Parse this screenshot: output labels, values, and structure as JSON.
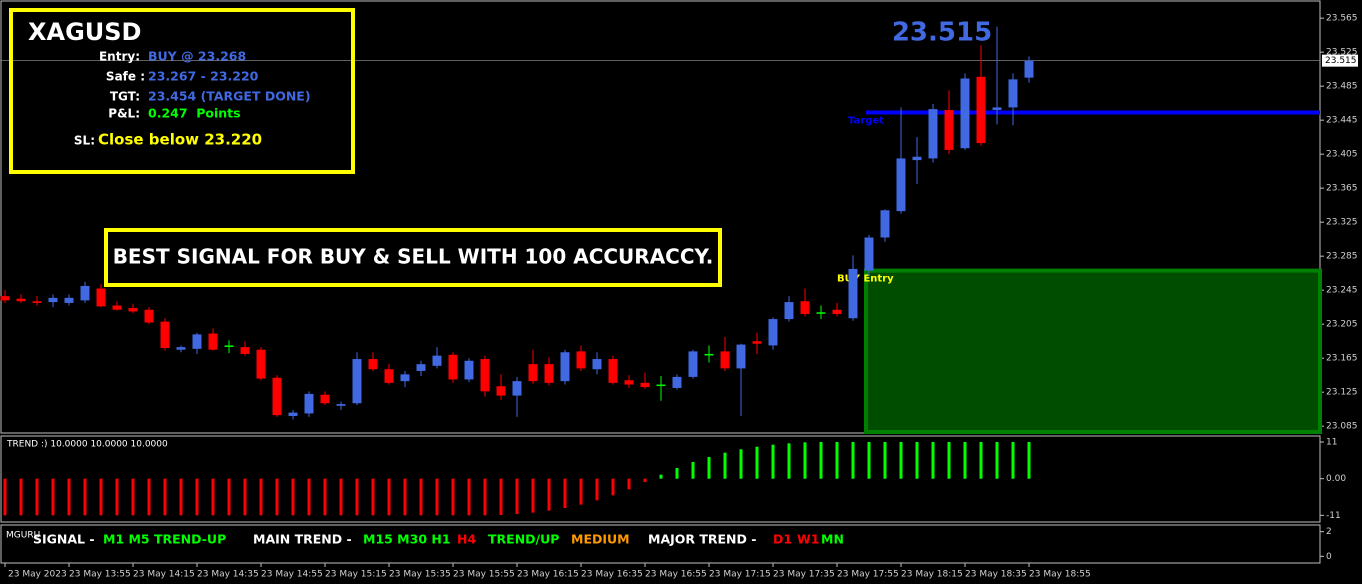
{
  "info_box": {
    "symbol": "XAGUSD",
    "rows": [
      {
        "label": "Entry:",
        "value": "BUY @ 23.268"
      },
      {
        "label": "Safe :",
        "value": "23.267 - 23.220"
      },
      {
        "label": "TGT:",
        "value": "23.454 (TARGET DONE)"
      },
      {
        "label": "P&L:",
        "value": "0.247  Points"
      }
    ],
    "sl": {
      "label": "SL:",
      "value": "Close below 23.220"
    }
  },
  "banner": "BEST SIGNAL FOR BUY & SELL WITH 100 ACCURACCY.",
  "signal_panel": {
    "name": "MGURU",
    "ylim": [
      -0.46,
      2.46
    ],
    "yticks": [
      2,
      0
    ],
    "segments": [
      {
        "text": "SIGNAL -",
        "color": "#ffffff"
      },
      {
        "text": "M1 M5 TREND-UP",
        "color": "#00ff00"
      },
      {
        "text": "MAIN TREND -",
        "color": "#ffffff"
      },
      {
        "text": "M15 M30 H1",
        "color": "#00ff00"
      },
      {
        "text": "H4",
        "color": "#ff0000"
      },
      {
        "text": "TREND/UP",
        "color": "#00ff00"
      },
      {
        "text": "MEDIUM",
        "color": "#ff9900"
      },
      {
        "text": "MAJOR TREND -",
        "color": "#ffffff"
      },
      {
        "text": "D1",
        "color": "#ff0000"
      },
      {
        "text": "W1",
        "color": "#ff0000"
      },
      {
        "text": "MN",
        "color": "#00ff00"
      }
    ]
  },
  "chart_data": [
    {
      "type": "candlestick",
      "up_color": "#4169e1",
      "down_color": "#ff0000",
      "doji_color": "#00ff00",
      "ylim": [
        23.077,
        23.584
      ],
      "yticks": [
        23.565,
        23.525,
        23.485,
        23.445,
        23.405,
        23.365,
        23.325,
        23.285,
        23.245,
        23.205,
        23.165,
        23.125,
        23.085
      ],
      "last_price": 23.515,
      "annotations": [
        {
          "text": "Target",
          "value": 23.454,
          "color": "#0000ff"
        },
        {
          "text": "BUY Entry",
          "value": 23.268,
          "color": "#ffff00"
        }
      ],
      "categories": [
        "23 May 2023",
        null,
        null,
        null,
        "23 May 13:55",
        null,
        null,
        null,
        "23 May 14:15",
        null,
        null,
        null,
        "23 May 14:35",
        null,
        null,
        null,
        "23 May 14:55",
        null,
        null,
        null,
        "23 May 15:15",
        null,
        null,
        null,
        "23 May 15:35",
        null,
        null,
        null,
        "23 May 15:55",
        null,
        null,
        null,
        "23 May 16:15",
        null,
        null,
        null,
        "23 May 16:35",
        null,
        null,
        null,
        "23 May 16:55",
        null,
        null,
        null,
        "23 May 17:15",
        null,
        null,
        null,
        "23 May 17:35",
        null,
        null,
        null,
        "23 May 17:55",
        null,
        null,
        null,
        "23 May 18:15",
        null,
        null,
        null,
        "23 May 18:35",
        null,
        null,
        null,
        "23 May 18:55"
      ],
      "open": [
        23.238,
        23.235,
        23.232,
        23.231,
        23.23,
        23.233,
        23.247,
        23.227,
        23.224,
        23.222,
        23.208,
        23.175,
        23.176,
        23.194,
        23.18,
        23.178,
        23.175,
        23.142,
        23.097,
        23.1,
        23.122,
        23.109,
        23.112,
        23.164,
        23.152,
        23.138,
        23.15,
        23.156,
        23.169,
        23.14,
        23.164,
        23.132,
        23.121,
        23.158,
        23.158,
        23.138,
        23.173,
        23.152,
        23.164,
        23.139,
        23.136,
        23.134,
        23.13,
        23.143,
        23.17,
        23.173,
        23.153,
        23.185,
        23.18,
        23.211,
        23.232,
        23.219,
        23.222,
        23.212,
        23.268,
        23.307,
        23.338,
        23.398,
        23.4,
        23.457,
        23.412,
        23.496,
        23.457,
        23.46,
        23.495
      ],
      "high": [
        23.245,
        23.24,
        23.238,
        23.24,
        23.24,
        23.255,
        23.252,
        23.232,
        23.229,
        23.225,
        23.212,
        23.18,
        23.195,
        23.2,
        23.186,
        23.185,
        23.178,
        23.145,
        23.104,
        23.126,
        23.126,
        23.114,
        23.172,
        23.172,
        23.158,
        23.15,
        23.162,
        23.178,
        23.172,
        23.165,
        23.168,
        23.146,
        23.143,
        23.175,
        23.166,
        23.175,
        23.18,
        23.172,
        23.168,
        23.145,
        23.148,
        23.144,
        23.146,
        23.175,
        23.18,
        23.19,
        23.182,
        23.195,
        23.213,
        23.238,
        23.247,
        23.227,
        23.23,
        23.286,
        23.31,
        23.34,
        23.46,
        23.425,
        23.464,
        23.48,
        23.5,
        23.533,
        23.555,
        23.5,
        23.52
      ],
      "low": [
        23.23,
        23.23,
        23.227,
        23.225,
        23.227,
        23.23,
        23.225,
        23.221,
        23.218,
        23.205,
        23.174,
        23.172,
        23.17,
        23.174,
        23.171,
        23.168,
        23.139,
        23.096,
        23.093,
        23.096,
        23.11,
        23.104,
        23.11,
        23.15,
        23.134,
        23.131,
        23.144,
        23.153,
        23.136,
        23.137,
        23.12,
        23.116,
        23.096,
        23.135,
        23.133,
        23.134,
        23.15,
        23.146,
        23.134,
        23.13,
        23.129,
        23.115,
        23.128,
        23.141,
        23.16,
        23.15,
        23.097,
        23.17,
        23.175,
        23.208,
        23.214,
        23.211,
        23.214,
        23.209,
        23.262,
        23.302,
        23.335,
        23.37,
        23.395,
        23.405,
        23.41,
        23.415,
        23.44,
        23.439,
        23.489
      ],
      "close": [
        23.233,
        23.232,
        23.23,
        23.236,
        23.236,
        23.25,
        23.226,
        23.222,
        23.22,
        23.207,
        23.177,
        23.178,
        23.193,
        23.175,
        23.18,
        23.17,
        23.141,
        23.098,
        23.101,
        23.123,
        23.112,
        23.111,
        23.164,
        23.152,
        23.136,
        23.146,
        23.158,
        23.168,
        23.14,
        23.162,
        23.126,
        23.121,
        23.138,
        23.138,
        23.136,
        23.172,
        23.153,
        23.164,
        23.136,
        23.134,
        23.131,
        23.134,
        23.143,
        23.173,
        23.17,
        23.153,
        23.181,
        23.182,
        23.211,
        23.231,
        23.217,
        23.219,
        23.217,
        23.27,
        23.307,
        23.339,
        23.4,
        23.402,
        23.458,
        23.41,
        23.494,
        23.418,
        23.46,
        23.493,
        23.515
      ]
    },
    {
      "type": "bar",
      "title": "TREND :) 10.0000 10.0000 10.0000",
      "ylim": [
        -12.7,
        12.5
      ],
      "yticks": [
        11,
        {
          "value": 0,
          "label": "0.00"
        },
        -11
      ],
      "negative_color": "#ff0000",
      "positive_color": "#00ff00",
      "neutral_color": "#ffff00",
      "values": [
        -11,
        -11,
        -11,
        -11,
        -11,
        -11,
        -11,
        -11,
        -11,
        -11,
        -11,
        -11,
        -11,
        -11,
        -11,
        -11,
        -11,
        -11,
        -11,
        -11,
        -11,
        -11,
        -11,
        -11,
        -11,
        -11,
        -11,
        -11,
        -11,
        -11,
        -11,
        -10.9,
        -10.6,
        -10.2,
        -9.6,
        -8.8,
        -7.8,
        -6.5,
        -5,
        -3.2,
        -1,
        1.2,
        3.2,
        5,
        6.5,
        7.8,
        8.8,
        9.6,
        10.2,
        10.6,
        10.9,
        11,
        11,
        11,
        11,
        11,
        11,
        11,
        11,
        11,
        11,
        11,
        11,
        11,
        11
      ]
    }
  ]
}
